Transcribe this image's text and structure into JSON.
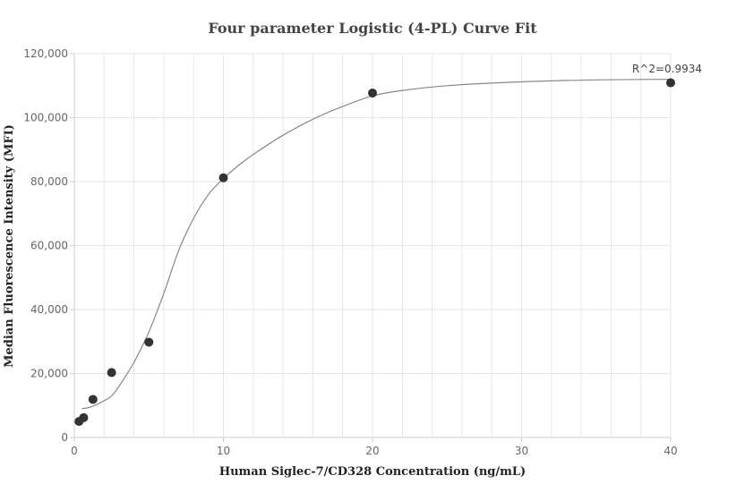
{
  "chart_data": {
    "type": "scatter",
    "title": "Four parameter Logistic (4-PL) Curve Fit",
    "xlabel": "Human Siglec-7/CD328 Concentration (ng/mL)",
    "ylabel": "Median Fluorescence Intensity (MFI)",
    "xlim": [
      0,
      40
    ],
    "ylim": [
      0,
      120000
    ],
    "x_ticks": [
      0,
      10,
      20,
      30,
      40
    ],
    "y_ticks": [
      0,
      20000,
      40000,
      60000,
      80000,
      100000,
      120000
    ],
    "x_tick_labels": [
      "0",
      "10",
      "20",
      "30",
      "40"
    ],
    "y_tick_labels": [
      "0",
      "20,000",
      "40,000",
      "60,000",
      "80,000",
      "100,000",
      "120,000"
    ],
    "grid": true,
    "annotation": "R^2=0.9934",
    "points": {
      "x": [
        0.313,
        0.625,
        1.25,
        2.5,
        5,
        10,
        20,
        40
      ],
      "y": [
        5000,
        6200,
        11900,
        20300,
        29800,
        81200,
        107700,
        110900
      ]
    },
    "fit_curve": {
      "x": [
        0.5,
        1,
        1.5,
        2,
        2.5,
        3,
        4,
        5,
        6,
        7,
        8,
        9,
        10,
        11,
        12,
        14,
        16,
        18,
        20,
        22,
        25,
        30,
        35,
        40
      ],
      "y": [
        9000,
        9400,
        10300,
        11500,
        13000,
        16000,
        23500,
        33000,
        45000,
        58500,
        68500,
        76000,
        81000,
        85000,
        88500,
        94500,
        99500,
        103500,
        106800,
        108500,
        110000,
        111200,
        111800,
        112000
      ]
    },
    "colors": {
      "point": "#333333",
      "curve": "#888888",
      "grid": "#e6e6e6",
      "axis": "#cccccc"
    }
  }
}
